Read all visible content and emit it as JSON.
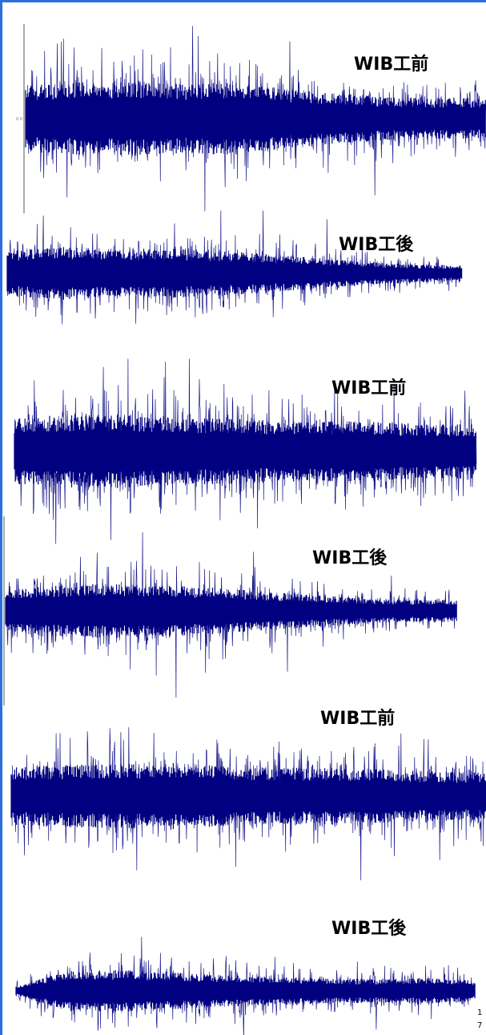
{
  "chart_data": [
    {
      "type": "line",
      "title": "WIB工前",
      "amplitude": 1.0,
      "envelope": [
        0.9,
        1.0,
        1.0,
        0.95,
        1.0,
        0.85,
        0.7,
        0.6,
        0.55,
        0.55
      ],
      "color": "#000080",
      "has_axis": true,
      "axis_tick": "0.0"
    },
    {
      "type": "line",
      "title": "WIB工後",
      "amplitude": 1.0,
      "envelope": [
        0.85,
        1.0,
        0.9,
        0.95,
        0.85,
        0.75,
        0.6,
        0.45,
        0.35,
        0.3
      ],
      "color": "#000080",
      "has_axis": false
    },
    {
      "type": "line",
      "title": "WIB工前",
      "amplitude": 1.0,
      "envelope": [
        0.9,
        1.0,
        1.0,
        0.95,
        0.9,
        0.85,
        0.85,
        0.8,
        0.75,
        0.75
      ],
      "color": "#000080",
      "has_axis": false
    },
    {
      "type": "line",
      "title": "WIB工後",
      "amplitude": 1.0,
      "envelope": [
        0.55,
        0.7,
        0.75,
        0.7,
        0.65,
        0.55,
        0.45,
        0.35,
        0.3,
        0.3
      ],
      "color": "#000080",
      "has_axis": true
    },
    {
      "type": "line",
      "title": "WIB工前",
      "amplitude": 1.0,
      "envelope": [
        0.85,
        0.95,
        0.95,
        1.0,
        0.9,
        0.85,
        0.85,
        0.8,
        0.75,
        0.7
      ],
      "color": "#000080",
      "has_axis": false
    },
    {
      "type": "line",
      "title": "WIB工後",
      "amplitude": 1.0,
      "envelope": [
        0.2,
        0.85,
        0.9,
        0.8,
        0.7,
        0.6,
        0.55,
        0.5,
        0.55,
        0.45
      ],
      "color": "#000080",
      "has_axis": false
    }
  ],
  "corner_marks": [
    "1",
    "7"
  ]
}
